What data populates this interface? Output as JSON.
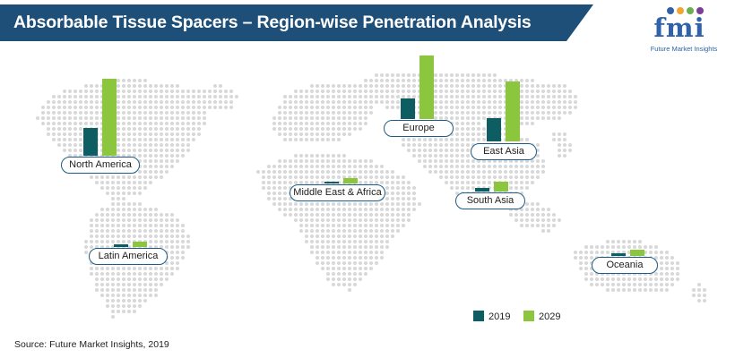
{
  "title": "Absorbable Tissue Spacers – Region-wise Penetration Analysis",
  "logo": {
    "text": "fmi",
    "subtitle": "Future Market Insights",
    "dot_colors": [
      "#2f62a8",
      "#f2a531",
      "#6ab04c",
      "#7d3c98"
    ]
  },
  "source": "Source: Future Market Insights, 2019",
  "colors": {
    "banner": "#1e4f79",
    "map_dot": "#d8d8d8",
    "series_2019": "#0e5d62",
    "series_2029": "#8cc63f",
    "label_border": "#1e5b86"
  },
  "chart_data": {
    "type": "bar",
    "title": "Absorbable Tissue Spacers – Region-wise Penetration Analysis",
    "xlabel": "",
    "ylabel": "",
    "categories": [
      "North America",
      "Europe",
      "East Asia",
      "Middle East & Africa",
      "South Asia",
      "Latin America",
      "Oceania"
    ],
    "series": [
      {
        "name": "2019",
        "values": [
          31,
          23,
          26,
          2,
          4,
          3,
          3
        ]
      },
      {
        "name": "2029",
        "values": [
          86,
          71,
          67,
          6,
          11,
          6,
          7
        ]
      }
    ],
    "legend": "bottom-right",
    "grid": false
  },
  "legend": {
    "items": [
      "2019",
      "2029"
    ]
  }
}
